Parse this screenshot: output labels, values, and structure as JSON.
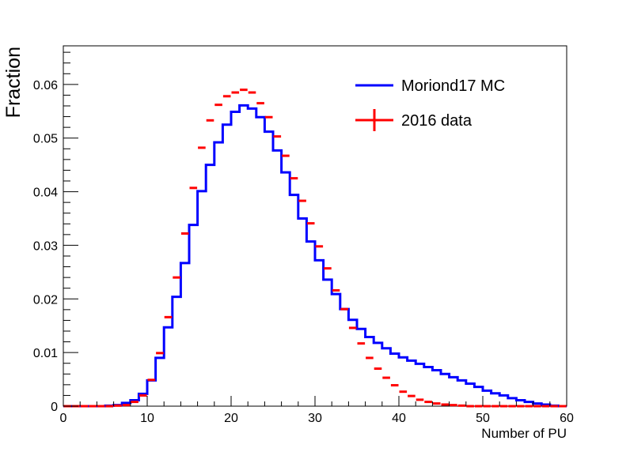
{
  "chart_data": {
    "type": "histogram",
    "title": "",
    "xlabel": "Number of PU",
    "ylabel": "Fraction",
    "xlim": [
      0,
      60
    ],
    "ylim": [
      0,
      0.0672
    ],
    "bin_width": 1,
    "x_ticks": [
      0,
      10,
      20,
      30,
      40,
      50,
      60
    ],
    "x_tick_labels": [
      "0",
      "10",
      "20",
      "30",
      "40",
      "50",
      "60"
    ],
    "y_ticks": [
      0,
      0.01,
      0.02,
      0.03,
      0.04,
      0.05,
      0.06
    ],
    "y_tick_labels": [
      "0",
      "0.01",
      "0.02",
      "0.03",
      "0.04",
      "0.05",
      "0.06"
    ],
    "grid": false,
    "legend_position": "top-right",
    "series": [
      {
        "name": "Moriond17 MC",
        "style": "step",
        "color": "#0000ff",
        "bin_low_edges": [
          0,
          1,
          2,
          3,
          4,
          5,
          6,
          7,
          8,
          9,
          10,
          11,
          12,
          13,
          14,
          15,
          16,
          17,
          18,
          19,
          20,
          21,
          22,
          23,
          24,
          25,
          26,
          27,
          28,
          29,
          30,
          31,
          32,
          33,
          34,
          35,
          36,
          37,
          38,
          39,
          40,
          41,
          42,
          43,
          44,
          45,
          46,
          47,
          48,
          49,
          50,
          51,
          52,
          53,
          54,
          55,
          56,
          57,
          58,
          59
        ],
        "values": [
          0.0,
          0.0,
          0.0,
          0.0,
          0.0,
          0.0001,
          0.0002,
          0.0006,
          0.0011,
          0.0023,
          0.0048,
          0.009,
          0.0147,
          0.0204,
          0.0267,
          0.0338,
          0.0401,
          0.045,
          0.0492,
          0.0525,
          0.0549,
          0.0561,
          0.0555,
          0.0539,
          0.0512,
          0.0477,
          0.0436,
          0.0394,
          0.035,
          0.0307,
          0.0272,
          0.0236,
          0.0209,
          0.0181,
          0.0161,
          0.0144,
          0.0129,
          0.0118,
          0.0108,
          0.0098,
          0.0091,
          0.0085,
          0.0079,
          0.0073,
          0.0067,
          0.006,
          0.0054,
          0.0048,
          0.0042,
          0.0036,
          0.0029,
          0.0024,
          0.002,
          0.0015,
          0.0011,
          0.0008,
          0.0005,
          0.0003,
          0.0001,
          0.0
        ]
      },
      {
        "name": "2016 data",
        "style": "points-xerr",
        "color": "#ff0000",
        "bin_low_edges": [
          0,
          1,
          2,
          3,
          4,
          5,
          6,
          7,
          8,
          9,
          10,
          11,
          12,
          13,
          14,
          15,
          16,
          17,
          18,
          19,
          20,
          21,
          22,
          23,
          24,
          25,
          26,
          27,
          28,
          29,
          30,
          31,
          32,
          33,
          34,
          35,
          36,
          37,
          38,
          39,
          40,
          41,
          42,
          43,
          44,
          45,
          46,
          47,
          48,
          49,
          50,
          51,
          52,
          53,
          54,
          55,
          56,
          57,
          58,
          59
        ],
        "values": [
          0.0,
          0.0,
          0.0,
          0.0,
          0.0,
          0.0,
          0.0001,
          0.0002,
          0.0008,
          0.002,
          0.0049,
          0.0099,
          0.0166,
          0.024,
          0.0322,
          0.0407,
          0.0482,
          0.0533,
          0.0562,
          0.0578,
          0.0585,
          0.059,
          0.0585,
          0.0565,
          0.0539,
          0.0503,
          0.0467,
          0.0425,
          0.0383,
          0.0341,
          0.0298,
          0.0257,
          0.0216,
          0.0181,
          0.0146,
          0.0117,
          0.009,
          0.007,
          0.0053,
          0.0039,
          0.0027,
          0.0019,
          0.0012,
          0.0008,
          0.0005,
          0.0003,
          0.0002,
          0.0001,
          0.0,
          0.0,
          0.0,
          0.0,
          0.0,
          0.0,
          0.0,
          0.0,
          0.0,
          0.0,
          0.0,
          0.0
        ]
      }
    ]
  }
}
